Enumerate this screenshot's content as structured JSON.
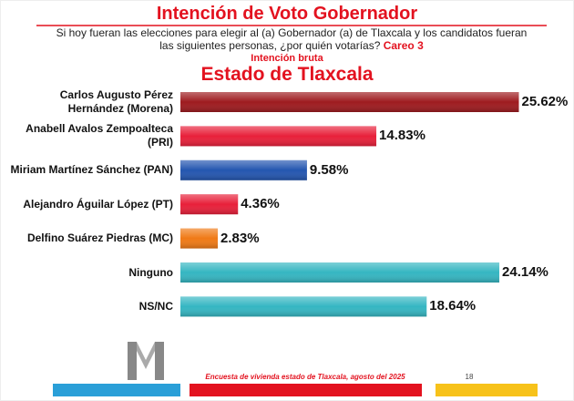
{
  "chart_data": {
    "type": "bar",
    "orientation": "horizontal",
    "title": "Intención de Voto Gobernador",
    "question": "Si hoy fueran las elecciones para elegir al (a) Gobernador (a) de Tlaxcala y los candidatos fueran las siguientes personas, ¿por quién votarías?",
    "question_tag": "Careo 3",
    "subtitle": "Intención bruta",
    "region": "Estado de Tlaxcala",
    "categories": [
      "Carlos Augusto Pérez Hernández (Morena)",
      "Anabell Avalos Zempoalteca (PRI)",
      "Miriam Martínez Sánchez (PAN)",
      "Alejandro Águilar López (PT)",
      "Delfino Suárez Piedras (MC)",
      "Ninguno",
      "NS/NC"
    ],
    "values": [
      25.62,
      14.83,
      9.58,
      4.36,
      2.83,
      24.14,
      18.64
    ],
    "value_labels": [
      "25.62%",
      "14.83%",
      "9.58%",
      "4.36%",
      "2.83%",
      "24.14%",
      "18.64%"
    ],
    "colors": [
      "#9e1b1f",
      "#e8203a",
      "#2456b0",
      "#e8203a",
      "#f07a16",
      "#35b6c2",
      "#35b6c2"
    ],
    "footer": "Encuesta de vivienda estado de Tlaxcala, agosto del 2025",
    "page": "18"
  }
}
